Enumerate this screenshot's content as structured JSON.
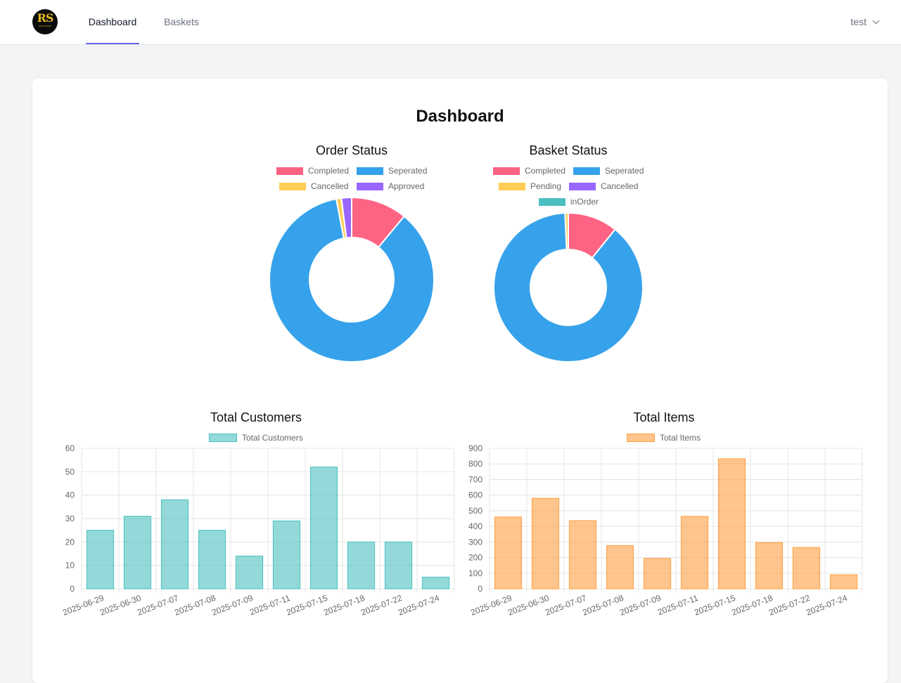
{
  "nav": {
    "logo_text": "RS",
    "logo_subtext": "ROYA SHOP",
    "tabs": [
      {
        "label": "Dashboard",
        "active": true
      },
      {
        "label": "Baskets",
        "active": false
      }
    ],
    "user": "test"
  },
  "page_title": "Dashboard",
  "colors": {
    "pink": "#ff6384",
    "blue": "#36a2eb",
    "yellow": "#ffcd56",
    "purple": "#9966ff",
    "teal": "#4bc0c0",
    "orange": "#ff9f40"
  },
  "chart_data": [
    {
      "type": "pie",
      "title": "Order Status",
      "labels": [
        "Completed",
        "Seperated",
        "Cancelled",
        "Approved"
      ],
      "values": [
        11,
        86,
        1,
        2
      ],
      "colors": [
        "#ff6384",
        "#36a2eb",
        "#ffcd56",
        "#9966ff"
      ]
    },
    {
      "type": "pie",
      "title": "Basket Status",
      "labels": [
        "Completed",
        "Seperated",
        "Pending",
        "Cancelled",
        "inOrder"
      ],
      "values": [
        10.8,
        88.5,
        0.7,
        0,
        0
      ],
      "colors": [
        "#ff6384",
        "#36a2eb",
        "#ffcd56",
        "#9966ff",
        "#4bc0c0"
      ]
    },
    {
      "type": "bar",
      "title": "Total Customers",
      "series": [
        {
          "name": "Total Customers",
          "values": [
            25,
            31,
            38,
            25,
            14,
            29,
            52,
            20,
            20,
            5
          ]
        }
      ],
      "categories": [
        "2025-06-29",
        "2025-06-30",
        "2025-07-07",
        "2025-07-08",
        "2025-07-09",
        "2025-07-11",
        "2025-07-15",
        "2025-07-18",
        "2025-07-22",
        "2025-07-24"
      ],
      "ylim": [
        0,
        60
      ],
      "yticks": [
        0,
        10,
        20,
        30,
        40,
        50,
        60
      ],
      "grid": true,
      "fill": "rgba(75,192,192,0.6)",
      "stroke": "#4bc0c0"
    },
    {
      "type": "bar",
      "title": "Total Items",
      "series": [
        {
          "name": "Total Items",
          "values": [
            460,
            580,
            437,
            277,
            195,
            464,
            833,
            297,
            265,
            90
          ]
        }
      ],
      "categories": [
        "2025-06-29",
        "2025-06-30",
        "2025-07-07",
        "2025-07-08",
        "2025-07-09",
        "2025-07-11",
        "2025-07-15",
        "2025-07-18",
        "2025-07-22",
        "2025-07-24"
      ],
      "ylim": [
        0,
        900
      ],
      "yticks": [
        0,
        100,
        200,
        300,
        400,
        500,
        600,
        700,
        800,
        900
      ],
      "grid": true,
      "fill": "rgba(255,159,64,0.6)",
      "stroke": "#ff9f40"
    }
  ]
}
